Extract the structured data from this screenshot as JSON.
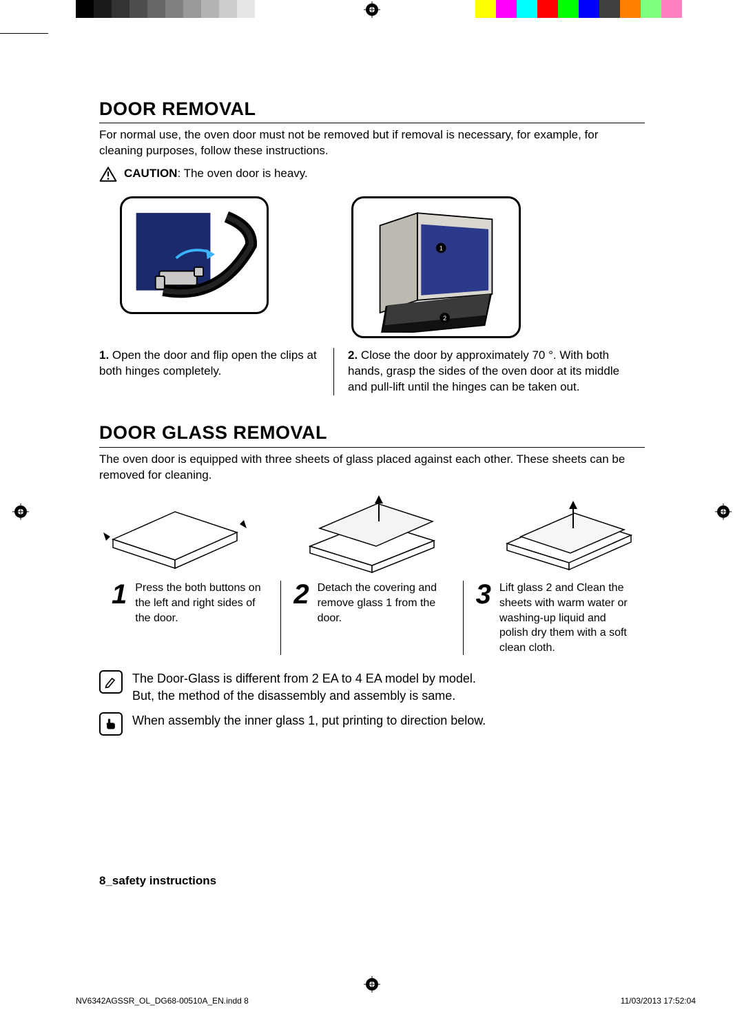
{
  "colorbar": {
    "grays": [
      "#000000",
      "#1a1a1a",
      "#333333",
      "#4d4d4d",
      "#666666",
      "#808080",
      "#999999",
      "#b3b3b3",
      "#cccccc",
      "#e6e6e6",
      "#ffffff"
    ],
    "hues": [
      "#ffff00",
      "#ff00ff",
      "#00ffff",
      "#ff0000",
      "#00ff00",
      "#0000ff",
      "#404040",
      "#ff8000",
      "#80ff80",
      "#ff80c0",
      "#ffffff"
    ]
  },
  "section1": {
    "heading": "DOOR REMOVAL",
    "intro": "For normal use, the oven door must not be removed but if removal is necessary, for example, for cleaning purposes, follow these instructions.",
    "caution_label": "CAUTION",
    "caution_text": ": The oven door is heavy.",
    "step1_num": "1.",
    "step1_text": "Open the door and flip open the clips at both hinges completely.",
    "step2_num": "2.",
    "step2_text": "Close the door by approximately 70 °. With both hands, grasp the sides of the oven door at its middle and pull-lift until the hinges can be taken out."
  },
  "section2": {
    "heading": "DOOR GLASS REMOVAL",
    "intro": "The oven door is equipped with three sheets of glass placed against each other. These sheets can be removed for cleaning.",
    "steps": [
      {
        "n": "1",
        "text": "Press the both buttons on the left and right sides of the door."
      },
      {
        "n": "2",
        "text": "Detach the covering and remove glass 1 from the door."
      },
      {
        "n": "3",
        "text": "Lift glass 2 and Clean the sheets with warm water or washing-up liquid and polish dry them with a soft clean cloth."
      }
    ],
    "note1a": "The Door-Glass is different from 2 EA to 4 EA model by model.",
    "note1b": "But, the method of the disassembly and assembly is same.",
    "note2": "When assembly the inner glass 1, put printing to direction below."
  },
  "footer": {
    "page_label": "8_safety instructions"
  },
  "print_footer": {
    "file": "NV6342AGSSR_OL_DG68-00510A_EN.indd   8",
    "date": "11/03/2013   17:52:04"
  },
  "fig_colors": {
    "hinge_bg": "#1a2a6c",
    "oven_body": "#d9d7cf",
    "oven_dark": "#2b3a8a"
  }
}
